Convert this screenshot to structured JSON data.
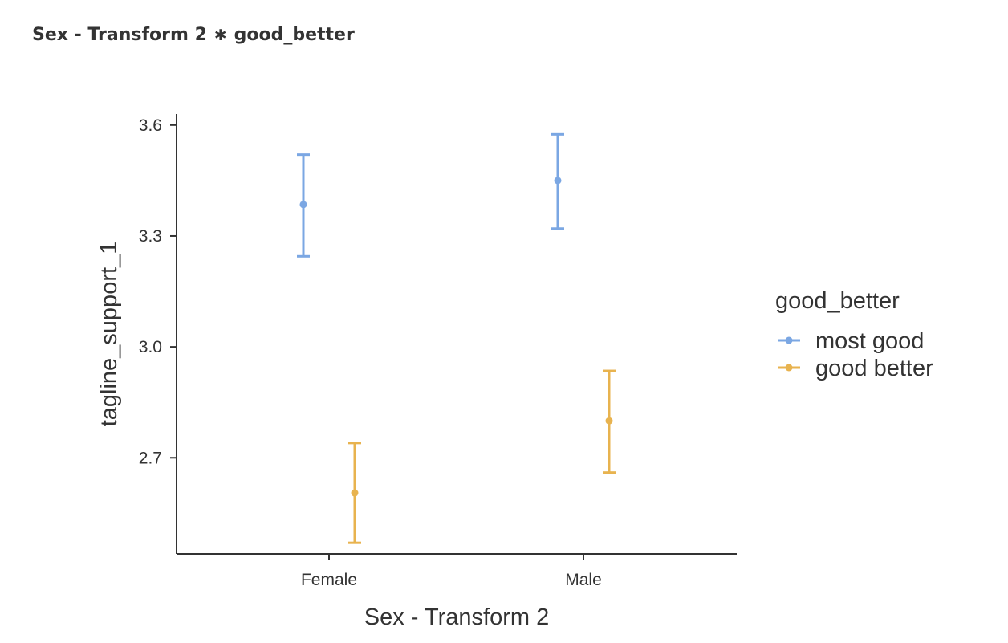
{
  "title": "Sex - Transform 2 ∗ good_better",
  "chart_data": {
    "type": "scatter",
    "title": "Sex - Transform 2 ∗ good_better",
    "xlabel": "Sex - Transform 2",
    "ylabel": "tagline_support_1",
    "categories": [
      "Female",
      "Male"
    ],
    "yticks": [
      "2.7",
      "3.0",
      "3.3",
      "3.6"
    ],
    "ylim": [
      2.44,
      3.63
    ],
    "grid": false,
    "legend": {
      "title": "good_better",
      "position": "right"
    },
    "series": [
      {
        "name": "most good",
        "color": "#7ba7e3",
        "values": [
          3.385,
          3.45
        ],
        "lower": [
          3.245,
          3.32
        ],
        "upper": [
          3.52,
          3.575
        ]
      },
      {
        "name": "good better",
        "color": "#e8b34f",
        "values": [
          2.605,
          2.8
        ],
        "lower": [
          2.47,
          2.66
        ],
        "upper": [
          2.74,
          2.935
        ]
      }
    ]
  }
}
